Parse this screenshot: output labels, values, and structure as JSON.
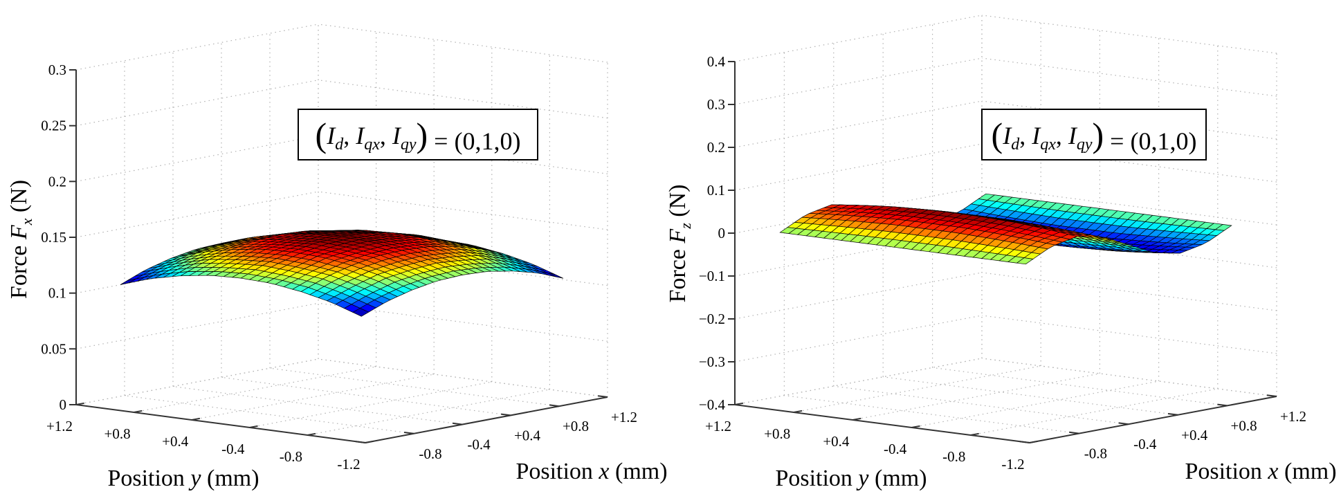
{
  "figure": {
    "background": "#ffffff",
    "grid_color": "#b0b0b0",
    "axis_color": "#333333",
    "mesh_edge_color": "#000000",
    "colormap": "jet"
  },
  "chart_data": [
    {
      "type": "surface",
      "title": "",
      "zlabel_main": "Force ",
      "zlabel_sym": "F",
      "zlabel_sub": "x",
      "zlabel_unit": " (N)",
      "xlabel_main": "Position ",
      "xlabel_var": "x",
      "xlabel_unit": " (mm)",
      "ylabel_main": "Position ",
      "ylabel_var": "y",
      "ylabel_unit": " (mm)",
      "zlim": [
        0,
        0.3
      ],
      "zticks": [
        0,
        0.05,
        0.1,
        0.15,
        0.2,
        0.25,
        0.3
      ],
      "zticklabels": [
        "0",
        "0.05",
        "0.1",
        "0.15",
        "0.2",
        "0.25",
        "0.3"
      ],
      "xlim": [
        -1.2,
        1.2
      ],
      "ylim": [
        -1.2,
        1.2
      ],
      "yticklabels": [
        "+1.2",
        "+0.8",
        "+0.4",
        "-0.4",
        "-0.8",
        "-1.2"
      ],
      "xticklabels": [
        "-1.2",
        "-0.8",
        "-0.4",
        "+0.4",
        "+0.8",
        "+1.2"
      ],
      "grid": true,
      "annotation": {
        "lhs": [
          "I",
          "d",
          "I",
          "qx",
          "I",
          "qy"
        ],
        "rhs": "(0,1,0)",
        "placement": "top-right"
      },
      "surface": {
        "x": [
          -1,
          -0.75,
          -0.5,
          -0.25,
          0,
          0.25,
          0.5,
          0.75,
          1
        ],
        "y": [
          -1,
          -0.75,
          -0.5,
          -0.25,
          0,
          0.25,
          0.5,
          0.75,
          1
        ],
        "z": [
          [
            0.107,
            0.116,
            0.122,
            0.126,
            0.127,
            0.126,
            0.122,
            0.116,
            0.107
          ],
          [
            0.116,
            0.124,
            0.131,
            0.134,
            0.136,
            0.134,
            0.131,
            0.124,
            0.116
          ],
          [
            0.122,
            0.131,
            0.137,
            0.141,
            0.142,
            0.141,
            0.137,
            0.131,
            0.122
          ],
          [
            0.126,
            0.134,
            0.141,
            0.144,
            0.146,
            0.144,
            0.141,
            0.134,
            0.126
          ],
          [
            0.127,
            0.136,
            0.142,
            0.146,
            0.147,
            0.146,
            0.142,
            0.136,
            0.127
          ],
          [
            0.126,
            0.134,
            0.141,
            0.144,
            0.146,
            0.144,
            0.141,
            0.134,
            0.126
          ],
          [
            0.122,
            0.131,
            0.137,
            0.141,
            0.142,
            0.141,
            0.137,
            0.131,
            0.122
          ],
          [
            0.116,
            0.124,
            0.131,
            0.134,
            0.136,
            0.134,
            0.131,
            0.124,
            0.116
          ],
          [
            0.107,
            0.116,
            0.122,
            0.126,
            0.127,
            0.126,
            0.122,
            0.116,
            0.107
          ]
        ]
      }
    },
    {
      "type": "surface",
      "title": "",
      "zlabel_main": "Force ",
      "zlabel_sym": "F",
      "zlabel_sub": "z",
      "zlabel_unit": " (N)",
      "xlabel_main": "Position ",
      "xlabel_var": "x",
      "xlabel_unit": " (mm)",
      "ylabel_main": "Position ",
      "ylabel_var": "y",
      "ylabel_unit": " (mm)",
      "zlim": [
        -0.4,
        0.4
      ],
      "zticks": [
        -0.4,
        -0.3,
        -0.2,
        -0.1,
        0,
        0.1,
        0.2,
        0.3,
        0.4
      ],
      "zticklabels": [
        "−0.4",
        "−0.3",
        "−0.2",
        "−0.1",
        "0",
        "0.1",
        "0.2",
        "0.3",
        "0.4"
      ],
      "xlim": [
        -1.2,
        1.2
      ],
      "ylim": [
        -1.2,
        1.2
      ],
      "yticklabels": [
        "+1.2",
        "+0.8",
        "+0.4",
        "-0.4",
        "-0.8",
        "-1.2"
      ],
      "xticklabels": [
        "-1.2",
        "-0.8",
        "-0.4",
        "+0.4",
        "+0.8",
        "+1.2"
      ],
      "grid": true,
      "annotation": {
        "lhs": [
          "I",
          "d",
          "I",
          "qx",
          "I",
          "qy"
        ],
        "rhs": "(0,1,0)",
        "placement": "top-right"
      },
      "surface": {
        "x": [
          -1,
          -0.75,
          -0.5,
          -0.25,
          0,
          0.25,
          0.5,
          0.75,
          1
        ],
        "y": [
          -1,
          -0.75,
          -0.5,
          -0.25,
          0,
          0.25,
          0.5,
          0.75,
          1
        ],
        "z": [
          [
            0,
            0.03,
            0.042,
            0.03,
            0,
            -0.03,
            -0.042,
            -0.03,
            0
          ],
          [
            0,
            0.035,
            0.05,
            0.035,
            0,
            -0.035,
            -0.05,
            -0.035,
            0
          ],
          [
            0,
            0.039,
            0.056,
            0.039,
            0,
            -0.039,
            -0.056,
            -0.039,
            0
          ],
          [
            0,
            0.042,
            0.059,
            0.042,
            0,
            -0.042,
            -0.059,
            -0.042,
            0
          ],
          [
            0,
            0.042,
            0.06,
            0.042,
            0,
            -0.042,
            -0.06,
            -0.042,
            0
          ],
          [
            0,
            0.042,
            0.059,
            0.042,
            0,
            -0.042,
            -0.059,
            -0.042,
            0
          ],
          [
            0,
            0.039,
            0.056,
            0.039,
            0,
            -0.039,
            -0.056,
            -0.039,
            0
          ],
          [
            0,
            0.035,
            0.05,
            0.035,
            0,
            -0.035,
            -0.05,
            -0.035,
            0
          ],
          [
            0,
            0.03,
            0.042,
            0.03,
            0,
            -0.03,
            -0.042,
            -0.03,
            0
          ]
        ]
      }
    }
  ]
}
